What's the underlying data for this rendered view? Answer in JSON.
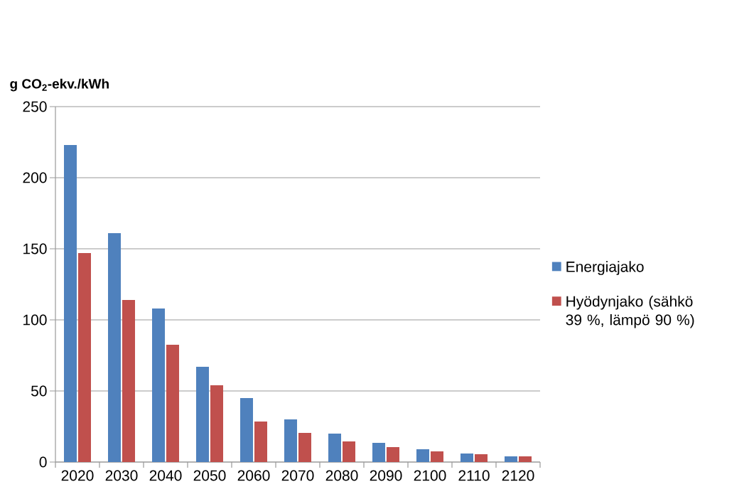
{
  "chart_data": {
    "type": "bar",
    "ylabel": "g CO$_{2}$-ekv./kWh",
    "categories": [
      "2020",
      "2030",
      "2040",
      "2050",
      "2060",
      "2070",
      "2080",
      "2090",
      "2100",
      "2110",
      "2120"
    ],
    "series": [
      {
        "name": "Energiajako",
        "color": "#4f81bd",
        "values": [
          223,
          161,
          108,
          67,
          45,
          30,
          20,
          13.5,
          9,
          6,
          4
        ]
      },
      {
        "name": "Hyödynjako (sähkö 39 %, lämpö 90 %)",
        "color": "#c0504d",
        "values": [
          147,
          114,
          82.5,
          54,
          28.5,
          20.5,
          14.5,
          10.5,
          7.5,
          5.5,
          4
        ]
      }
    ],
    "ylim": [
      0,
      250
    ],
    "yticks": [
      0,
      50,
      100,
      150,
      200,
      250
    ],
    "grid": "y",
    "legend": "right"
  }
}
